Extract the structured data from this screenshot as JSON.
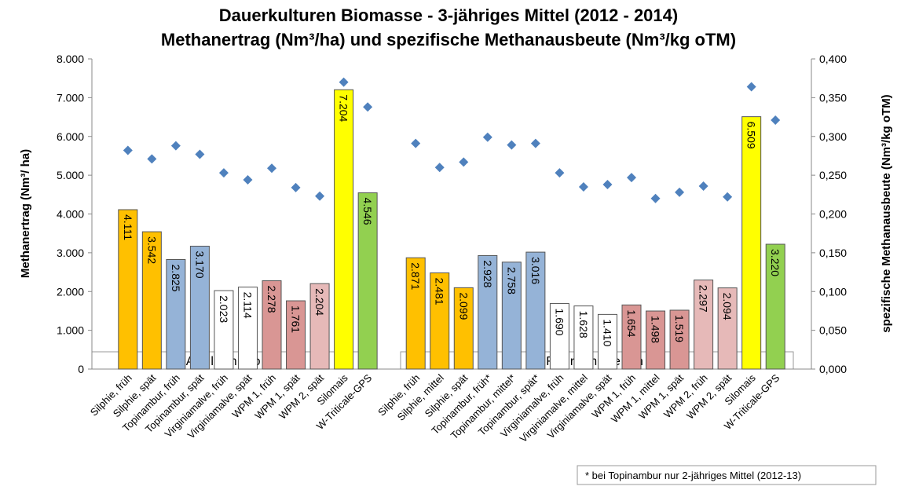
{
  "chart_data": {
    "type": "bar",
    "title": "Dauerkulturen Biomasse  - 3-jähriges Mittel (2012 - 2014)",
    "subtitle": "Methanertrag (Nm³/ha) und spezifische Methanausbeute (Nm³/kg oTM)",
    "y_label": "Methanertrag (Nm³/ ha)",
    "y2_label": "spezifische Methanausbeute (Nm³/kg oTM)",
    "groups": [
      "Aulendorf",
      "Forchheim"
    ],
    "footnote": "* bei Topinambur nur 2-jähriges Mittel (2012-13)",
    "categories": [
      null,
      "Silphie, früh",
      "Silphie, spät",
      "Topinambur, früh",
      "Topinambur, spät",
      "Virginiamalve, früh",
      "Virginiamalve, spät",
      "WPM 1, früh",
      "WPM 1, spät",
      "WPM 2, spät",
      "Silomais",
      "W-Triticale-GPS",
      null,
      "Silphie, früh",
      "Silphie, mittel",
      "Silphie, spät",
      "Topinambur, früh*",
      "Topinambur, mittel*",
      "Topinambur, spät*",
      "Virginiamalve, früh",
      "Virginiamalve, mittel",
      "Virginiamalve, spät",
      "WPM 1, früh",
      "WPM 1, mittel",
      "WPM 1, spät",
      "WPM 2, früh",
      "WPM 2, spät",
      "Silomais",
      "W-Triticale-GPS",
      null
    ],
    "series": [
      {
        "name": "Methanertrag",
        "values": [
          null,
          4111,
          3542,
          2825,
          3170,
          2023,
          2114,
          2278,
          1761,
          2204,
          7204,
          4546,
          null,
          2871,
          2481,
          2099,
          2928,
          2758,
          3016,
          1690,
          1628,
          1410,
          1654,
          1498,
          1519,
          2297,
          2094,
          6509,
          3220,
          null
        ],
        "value_labels": [
          null,
          "4.111",
          "3.542",
          "2.825",
          "3.170",
          "2.023",
          "2.114",
          "2.278",
          "1.761",
          "2.204",
          "7.204",
          "4.546",
          null,
          "2.871",
          "2.481",
          "2.099",
          "2.928",
          "2.758",
          "3.016",
          "1.690",
          "1.628",
          "1.410",
          "1.654",
          "1.498",
          "1.519",
          "2.297",
          "2.094",
          "6.509",
          "3.220",
          null
        ],
        "colors": [
          null,
          "#ffc000",
          "#ffc000",
          "#95b3d7",
          "#95b3d7",
          "#ffffff",
          "#ffffff",
          "#d99694",
          "#d99694",
          "#e6b9b8",
          "#ffff00",
          "#92d050",
          null,
          "#ffc000",
          "#ffc000",
          "#ffc000",
          "#95b3d7",
          "#95b3d7",
          "#95b3d7",
          "#ffffff",
          "#ffffff",
          "#ffffff",
          "#d99694",
          "#d99694",
          "#d99694",
          "#e6b9b8",
          "#e6b9b8",
          "#ffff00",
          "#92d050",
          null
        ]
      },
      {
        "name": "Methanausbeute",
        "type": "scatter",
        "axis": "y2",
        "color": "#4f81bd",
        "values": [
          null,
          0.282,
          0.271,
          0.288,
          0.277,
          0.253,
          0.244,
          0.259,
          0.234,
          0.223,
          0.37,
          0.338,
          null,
          0.291,
          0.26,
          0.267,
          0.299,
          0.289,
          0.291,
          0.253,
          0.235,
          0.238,
          0.247,
          0.22,
          0.228,
          0.236,
          0.222,
          0.364,
          0.321,
          null
        ]
      }
    ],
    "ylim": [
      0,
      8000
    ],
    "yticks": [
      0,
      {
        "value": 1000,
        "label": "1.000"
      },
      {
        "value": 2000,
        "label": "2.000"
      },
      {
        "value": 3000,
        "label": "3.000"
      },
      {
        "value": 4000,
        "label": "4.000"
      },
      {
        "value": 5000,
        "label": "5.000"
      },
      {
        "value": 6000,
        "label": "6.000"
      },
      {
        "value": 7000,
        "label": "7.000"
      },
      {
        "value": 8000,
        "label": "8.000"
      }
    ],
    "y2lim": [
      0,
      0.4
    ],
    "y2ticks": [
      {
        "value": 0,
        "label": "0,000"
      },
      {
        "value": 0.05,
        "label": "0,050"
      },
      {
        "value": 0.1,
        "label": "0,100"
      },
      {
        "value": 0.15,
        "label": "0,150"
      },
      {
        "value": 0.2,
        "label": "0,200"
      },
      {
        "value": 0.25,
        "label": "0,250"
      },
      {
        "value": 0.3,
        "label": "0,300"
      },
      {
        "value": 0.35,
        "label": "0,350"
      },
      {
        "value": 0.4,
        "label": "0,400"
      }
    ]
  }
}
